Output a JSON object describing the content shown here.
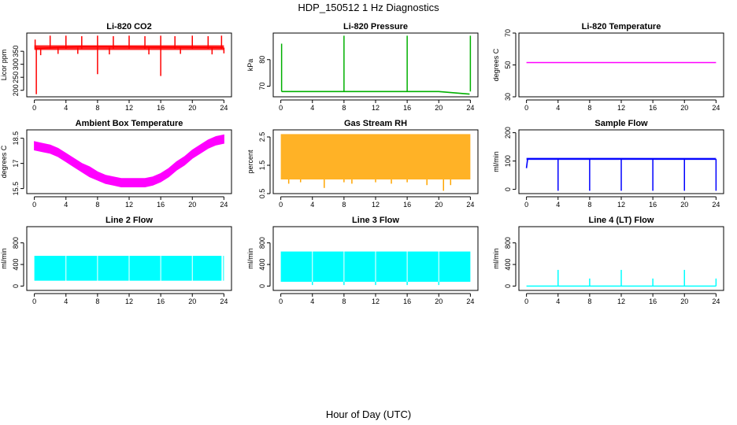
{
  "figure": {
    "title": "HDP_150512  1 Hz Diagnostics",
    "xlabel": "Hour of Day (UTC)"
  },
  "chart_data": [
    {
      "id": "co2",
      "type": "line",
      "title": "Li-820 CO2",
      "ylabel": "Licor ppm",
      "color": "#ff0000",
      "xlim": [
        0,
        24
      ],
      "xticks": [
        0,
        4,
        8,
        12,
        16,
        20,
        24
      ],
      "ylim": [
        175,
        420
      ],
      "yticks": [
        200,
        250,
        300,
        350
      ],
      "series": [
        {
          "name": "baseline",
          "kind": "line",
          "points": [
            [
              0.1,
              360
            ],
            [
              3,
              365
            ],
            [
              6,
              368
            ],
            [
              9,
              368
            ],
            [
              12,
              367
            ],
            [
              15,
              366
            ],
            [
              18,
              366
            ],
            [
              21,
              365
            ],
            [
              23.9,
              364
            ]
          ]
        },
        {
          "name": "noise_band",
          "kind": "band",
          "low": 355,
          "high": 373
        },
        {
          "name": "spikes",
          "kind": "spikes",
          "up": [
            [
              0.1,
              395
            ],
            [
              2,
              410
            ],
            [
              4,
              410
            ],
            [
              6,
              408
            ],
            [
              8,
              410
            ],
            [
              10,
              408
            ],
            [
              12,
              410
            ],
            [
              14,
              408
            ],
            [
              16,
              410
            ],
            [
              17.8,
              408
            ],
            [
              20,
              410
            ],
            [
              22,
              408
            ],
            [
              23.7,
              410
            ]
          ],
          "down": [
            [
              0.25,
              185
            ],
            [
              8,
              262
            ],
            [
              16,
              255
            ],
            [
              0.8,
              335
            ],
            [
              3,
              340
            ],
            [
              5.5,
              340
            ],
            [
              9.5,
              338
            ],
            [
              14.5,
              338
            ],
            [
              18.5,
              340
            ],
            [
              22.5,
              338
            ],
            [
              24,
              342
            ]
          ]
        }
      ]
    },
    {
      "id": "pressure",
      "type": "line",
      "title": "Li-820 Pressure",
      "ylabel": "kPa",
      "color": "#00b000",
      "xlim": [
        0,
        24
      ],
      "xticks": [
        0,
        4,
        8,
        12,
        16,
        20,
        24
      ],
      "ylim": [
        66,
        90
      ],
      "yticks": [
        70,
        80
      ],
      "series": [
        {
          "name": "baseline",
          "kind": "line",
          "points": [
            [
              0.1,
              68
            ],
            [
              8,
              68
            ],
            [
              16,
              68
            ],
            [
              20,
              68
            ],
            [
              23.9,
              67
            ]
          ]
        },
        {
          "name": "spikes",
          "kind": "spikes",
          "up": [
            [
              0.1,
              86
            ],
            [
              8,
              89
            ],
            [
              16,
              89
            ],
            [
              24,
              89
            ]
          ],
          "down": [
            [
              20,
              67
            ]
          ]
        }
      ]
    },
    {
      "id": "licor_temp",
      "type": "line",
      "title": "Li-820 Temperature",
      "ylabel": "degrees C",
      "color": "#ff00ff",
      "xlim": [
        0,
        24
      ],
      "xticks": [
        0,
        4,
        8,
        12,
        16,
        20,
        24
      ],
      "ylim": [
        30,
        70
      ],
      "yticks": [
        30,
        50,
        70
      ],
      "series": [
        {
          "name": "temp",
          "kind": "line",
          "points": [
            [
              0,
              51.5
            ],
            [
              24,
              51.5
            ]
          ]
        }
      ]
    },
    {
      "id": "ambient_temp",
      "type": "area",
      "title": "Ambient Box Temperature",
      "ylabel": "degrees C",
      "color": "#ff00ff",
      "xlim": [
        0,
        24
      ],
      "xticks": [
        0,
        4,
        8,
        12,
        16,
        20,
        24
      ],
      "ylim": [
        15.2,
        19.0
      ],
      "yticks": [
        15.5,
        17.0,
        18.5
      ],
      "series": [
        {
          "name": "range",
          "kind": "band_curve",
          "x": [
            0,
            1,
            2,
            3,
            4,
            5,
            6,
            7,
            8,
            9,
            10,
            11,
            12,
            13,
            14,
            15,
            16,
            17,
            18,
            19,
            20,
            21,
            22,
            23,
            24
          ],
          "low": [
            17.8,
            17.7,
            17.6,
            17.4,
            17.1,
            16.8,
            16.5,
            16.2,
            16.0,
            15.8,
            15.7,
            15.6,
            15.6,
            15.6,
            15.6,
            15.7,
            15.9,
            16.2,
            16.6,
            16.9,
            17.3,
            17.6,
            17.9,
            18.1,
            18.2
          ],
          "high": [
            18.3,
            18.2,
            18.1,
            17.9,
            17.6,
            17.3,
            17.0,
            16.8,
            16.5,
            16.3,
            16.2,
            16.1,
            16.1,
            16.1,
            16.1,
            16.2,
            16.4,
            16.7,
            17.1,
            17.4,
            17.8,
            18.1,
            18.4,
            18.6,
            18.7
          ]
        }
      ]
    },
    {
      "id": "rh",
      "type": "area",
      "title": "Gas Stream RH",
      "ylabel": "percent",
      "color": "#ffa500",
      "xlim": [
        0,
        24
      ],
      "xticks": [
        0,
        4,
        8,
        12,
        16,
        20,
        24
      ],
      "ylim": [
        0.5,
        2.75
      ],
      "yticks": [
        0.5,
        1.5,
        2.5
      ],
      "series": [
        {
          "name": "range",
          "kind": "band",
          "low": 1.0,
          "high": 2.6
        },
        {
          "name": "drops",
          "kind": "spikes",
          "up": [],
          "down": [
            [
              1,
              0.85
            ],
            [
              2.5,
              0.9
            ],
            [
              5.5,
              0.7
            ],
            [
              8,
              0.9
            ],
            [
              9,
              0.85
            ],
            [
              12,
              0.9
            ],
            [
              14,
              0.85
            ],
            [
              16,
              0.9
            ],
            [
              18.5,
              0.8
            ],
            [
              20.6,
              0.6
            ],
            [
              21.5,
              0.8
            ]
          ]
        }
      ]
    },
    {
      "id": "sample_flow",
      "type": "line",
      "title": "Sample Flow",
      "ylabel": "ml/min",
      "color": "#0000ff",
      "xlim": [
        0,
        24
      ],
      "xticks": [
        0,
        4,
        8,
        12,
        16,
        20,
        24
      ],
      "ylim": [
        -15,
        210
      ],
      "yticks": [
        0,
        100,
        200
      ],
      "series": [
        {
          "name": "flow",
          "kind": "line",
          "points": [
            [
              0,
              75
            ],
            [
              0.15,
              108
            ],
            [
              12,
              108
            ],
            [
              23.9,
              107
            ]
          ]
        },
        {
          "name": "noise_band",
          "kind": "band",
          "low": 104,
          "high": 111
        },
        {
          "name": "dips",
          "kind": "spikes",
          "up": [],
          "down": [
            [
              4,
              -5
            ],
            [
              8,
              -5
            ],
            [
              12,
              -5
            ],
            [
              16,
              -5
            ],
            [
              20,
              -5
            ],
            [
              24,
              -5
            ]
          ]
        }
      ]
    },
    {
      "id": "line2_flow",
      "type": "area",
      "title": "Line 2 Flow",
      "ylabel": "ml/min",
      "color": "#00ffff",
      "xlim": [
        0,
        24
      ],
      "xticks": [
        0,
        4,
        8,
        12,
        16,
        20,
        24
      ],
      "ylim": [
        -80,
        1100
      ],
      "yticks": [
        0,
        400,
        800
      ],
      "series": [
        {
          "name": "range",
          "kind": "segments",
          "low": 100,
          "high": 560,
          "segments": [
            [
              0,
              3.95
            ],
            [
              4.05,
              7.95
            ],
            [
              8.05,
              11.95
            ],
            [
              12.05,
              15.95
            ],
            [
              16.05,
              19.95
            ],
            [
              20.05,
              23.7
            ],
            [
              23.9,
              24
            ]
          ]
        }
      ]
    },
    {
      "id": "line3_flow",
      "type": "area",
      "title": "Line 3 Flow",
      "ylabel": "ml/min",
      "color": "#00ffff",
      "xlim": [
        0,
        24
      ],
      "xticks": [
        0,
        4,
        8,
        12,
        16,
        20,
        24
      ],
      "ylim": [
        -80,
        1100
      ],
      "yticks": [
        0,
        400,
        800
      ],
      "series": [
        {
          "name": "range",
          "kind": "segments",
          "low": 80,
          "high": 640,
          "segments": [
            [
              0,
              3.95
            ],
            [
              4.05,
              7.95
            ],
            [
              8.05,
              11.95
            ],
            [
              12.05,
              15.95
            ],
            [
              16.05,
              19.95
            ],
            [
              20.05,
              24
            ]
          ]
        },
        {
          "name": "dips",
          "kind": "spikes",
          "up": [],
          "down": [
            [
              4,
              20
            ],
            [
              8,
              20
            ],
            [
              12,
              20
            ],
            [
              16,
              20
            ],
            [
              20,
              20
            ]
          ]
        }
      ]
    },
    {
      "id": "line4_flow",
      "type": "line",
      "title": "Line 4 (LT) Flow",
      "ylabel": "ml/min",
      "color": "#00ffff",
      "xlim": [
        0,
        24
      ],
      "xticks": [
        0,
        4,
        8,
        12,
        16,
        20,
        24
      ],
      "ylim": [
        -80,
        1100
      ],
      "yticks": [
        0,
        400,
        800
      ],
      "series": [
        {
          "name": "flow",
          "kind": "line",
          "points": [
            [
              0,
              0
            ],
            [
              24,
              0
            ]
          ]
        },
        {
          "name": "spikes",
          "kind": "spikes",
          "up": [
            [
              4,
              300
            ],
            [
              8,
              140
            ],
            [
              12,
              300
            ],
            [
              16,
              140
            ],
            [
              20,
              300
            ],
            [
              24,
              140
            ]
          ],
          "down": []
        }
      ]
    }
  ]
}
